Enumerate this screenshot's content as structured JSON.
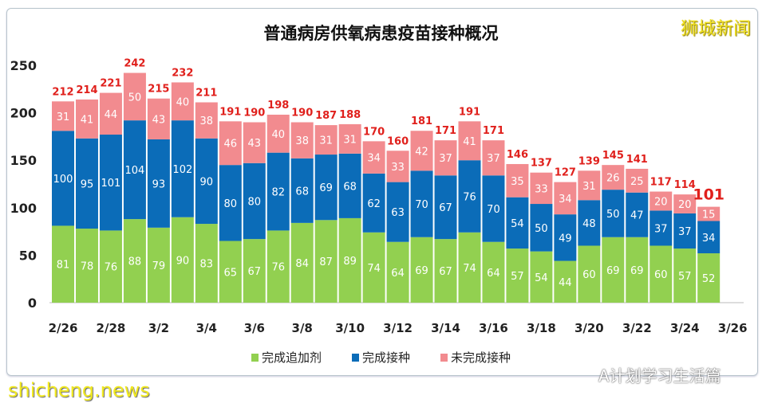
{
  "chart_data": {
    "type": "bar",
    "stacked": true,
    "title": "普通病房供氧病患疫苗接种概况",
    "categories": [
      "2/26",
      "2/27",
      "2/28",
      "3/1",
      "3/2",
      "3/3",
      "3/4",
      "3/5",
      "3/6",
      "3/7",
      "3/8",
      "3/9",
      "3/10",
      "3/11",
      "3/12",
      "3/13",
      "3/14",
      "3/15",
      "3/16",
      "3/17",
      "3/18",
      "3/19",
      "3/20",
      "3/21",
      "3/22",
      "3/23",
      "3/24",
      "3/25"
    ],
    "x_tick_labels": [
      "2/26",
      "2/28",
      "3/2",
      "3/4",
      "3/6",
      "3/8",
      "3/10",
      "3/12",
      "3/14",
      "3/16",
      "3/18",
      "3/20",
      "3/22",
      "3/24",
      "3/26"
    ],
    "series": [
      {
        "name": "完成追加剂",
        "color": "#92d050",
        "values": [
          81,
          78,
          76,
          88,
          79,
          90,
          83,
          65,
          67,
          76,
          84,
          87,
          89,
          74,
          64,
          69,
          67,
          74,
          64,
          57,
          54,
          44,
          60,
          69,
          69,
          60,
          57,
          52
        ]
      },
      {
        "name": "完成接种",
        "color": "#0b6cb8",
        "values": [
          100,
          95,
          101,
          104,
          93,
          102,
          90,
          80,
          80,
          82,
          68,
          69,
          68,
          62,
          63,
          70,
          67,
          76,
          70,
          54,
          50,
          49,
          48,
          50,
          47,
          37,
          37,
          34
        ]
      },
      {
        "name": "未完成接种",
        "color": "#f28b8f",
        "values": [
          31,
          41,
          44,
          50,
          43,
          40,
          38,
          46,
          43,
          40,
          38,
          31,
          31,
          34,
          33,
          42,
          37,
          41,
          37,
          35,
          33,
          34,
          31,
          26,
          25,
          20,
          20,
          15
        ]
      }
    ],
    "totals": [
      212,
      214,
      221,
      242,
      215,
      232,
      211,
      191,
      190,
      198,
      190,
      187,
      188,
      170,
      160,
      181,
      171,
      191,
      171,
      146,
      137,
      127,
      139,
      145,
      141,
      117,
      114,
      101
    ],
    "total_label_color": "#e0201c",
    "ylim": [
      0,
      250
    ],
    "yticks": [
      0,
      50,
      100,
      150,
      200,
      250
    ],
    "grid": false,
    "legend": "bottom"
  },
  "watermarks": {
    "brand": "狮城新闻",
    "site": "shicheng.news",
    "wechat": "A计划学习生活篇"
  }
}
